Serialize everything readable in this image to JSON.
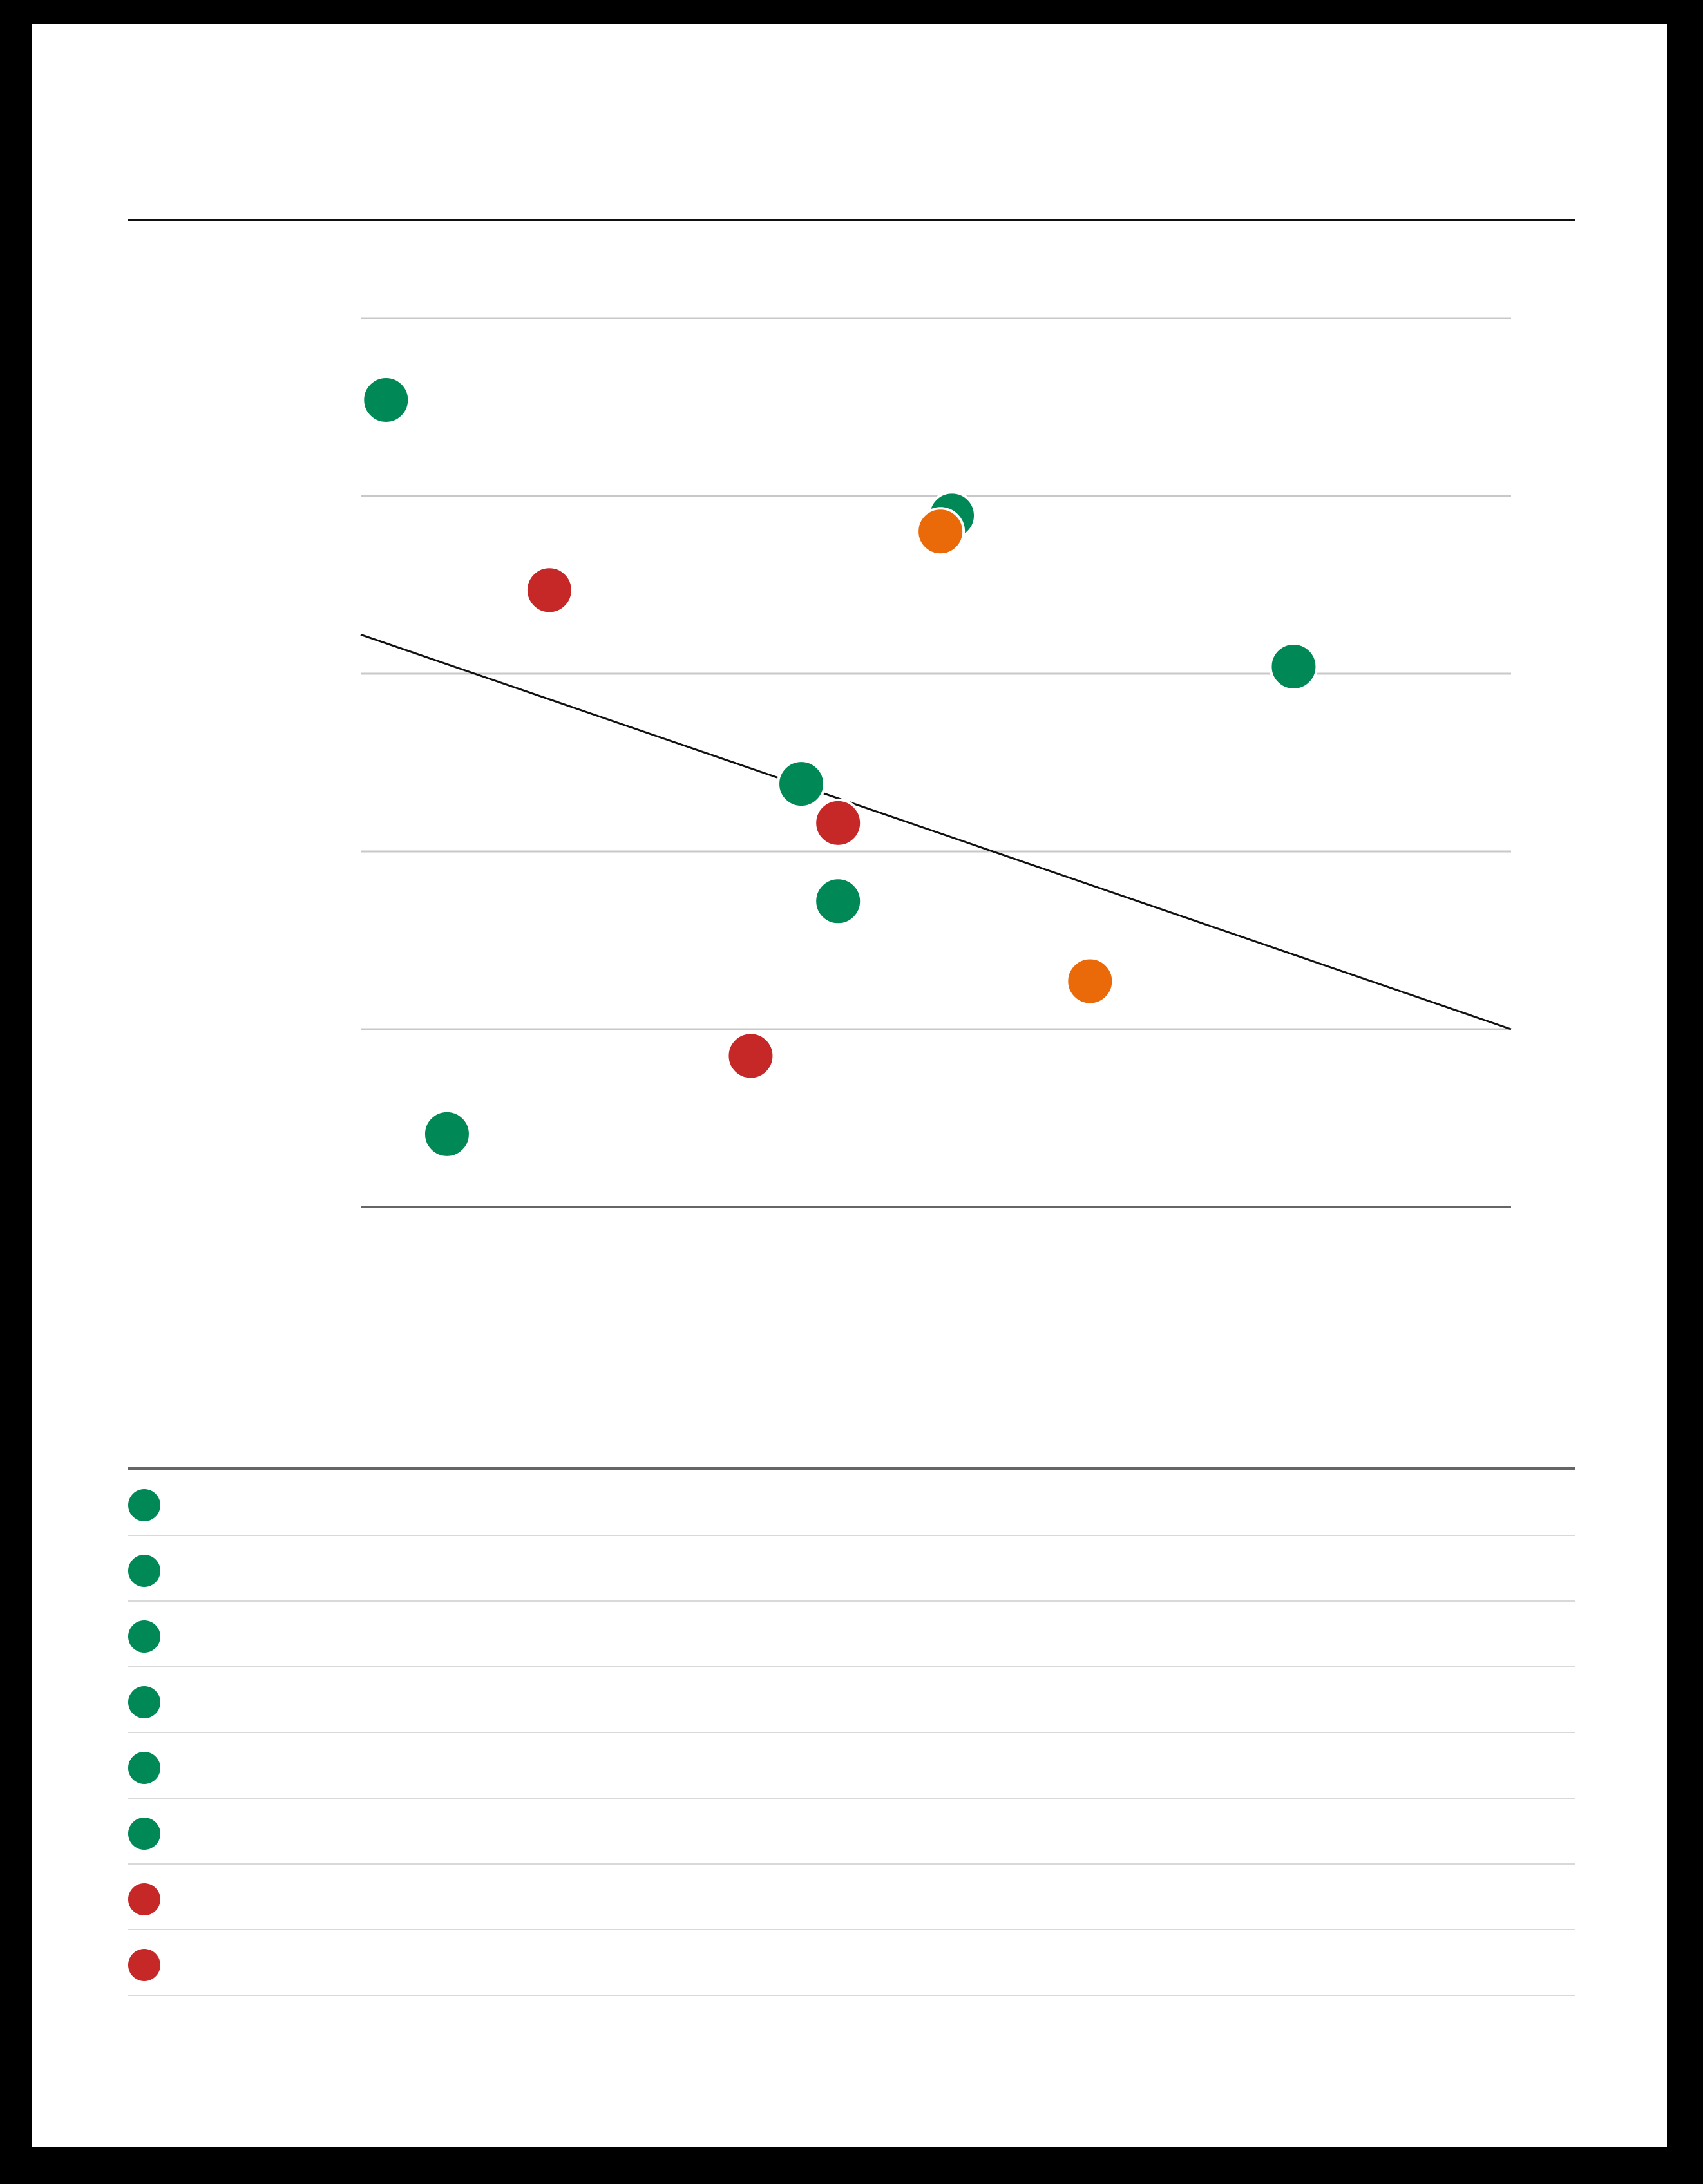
{
  "chart_data": {
    "type": "scatter",
    "ylim": [
      0,
      5
    ],
    "xlim": [
      0,
      1
    ],
    "grid": true,
    "legend_placement": "bottom",
    "colors": {
      "green": "#008856",
      "red": "#c62828",
      "orange": "#ea6a0a",
      "gridline": "#c8c8c8",
      "axis": "#666666",
      "trendline": "#111111"
    },
    "points": [
      {
        "x": 0.022,
        "y": 4.54,
        "group": "green"
      },
      {
        "x": 0.075,
        "y": 0.41,
        "group": "green"
      },
      {
        "x": 0.164,
        "y": 3.47,
        "group": "red"
      },
      {
        "x": 0.339,
        "y": 0.85,
        "group": "red"
      },
      {
        "x": 0.383,
        "y": 2.38,
        "group": "green"
      },
      {
        "x": 0.415,
        "y": 2.16,
        "group": "red"
      },
      {
        "x": 0.415,
        "y": 1.72,
        "group": "green"
      },
      {
        "x": 0.514,
        "y": 3.89,
        "group": "green"
      },
      {
        "x": 0.504,
        "y": 3.8,
        "group": "orange"
      },
      {
        "x": 0.634,
        "y": 1.27,
        "group": "orange"
      },
      {
        "x": 0.811,
        "y": 3.04,
        "group": "green"
      }
    ],
    "trendline": {
      "x": [
        0,
        1
      ],
      "y": [
        3.22,
        1.0
      ]
    }
  },
  "legend": {
    "items": [
      {
        "color": "#008856"
      },
      {
        "color": "#008856"
      },
      {
        "color": "#008856"
      },
      {
        "color": "#008856"
      },
      {
        "color": "#008856"
      },
      {
        "color": "#008856"
      },
      {
        "color": "#c62828"
      },
      {
        "color": "#c62828"
      }
    ]
  }
}
